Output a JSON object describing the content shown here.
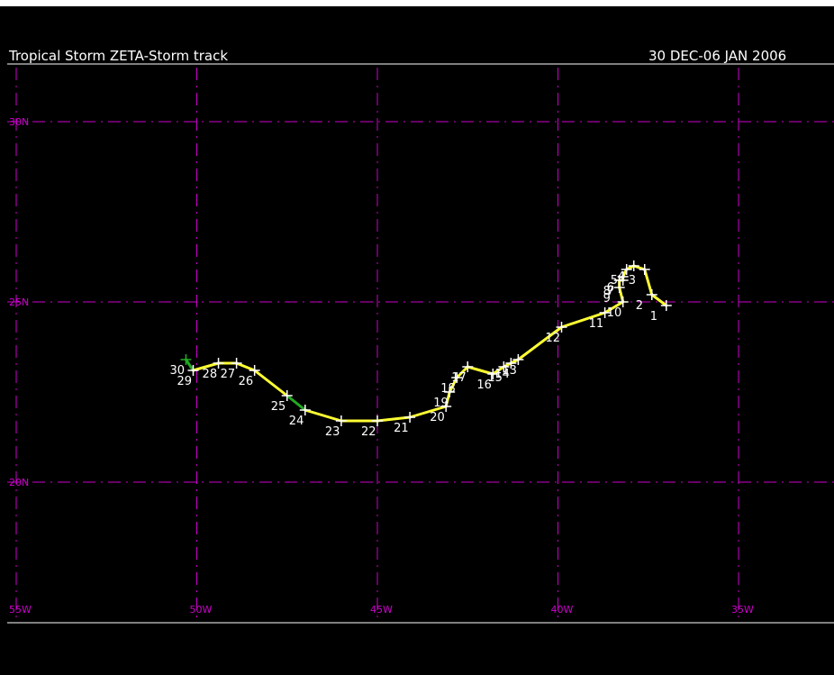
{
  "header": {
    "title": "Tropical Storm ZETA-Storm track",
    "date_range": "30 DEC-06 JAN 2006"
  },
  "colors": {
    "background": "#000000",
    "frame": "#ffffff",
    "grid": "#cc00cc",
    "track_storm": "#ffff33",
    "track_depression": "#22aa22",
    "markers": "#ffffff"
  },
  "map": {
    "lon_range": [
      -55,
      -35
    ],
    "lat_range": [
      17,
      32
    ],
    "lon_gridlines": [
      -55,
      -50,
      -45,
      -40,
      -35
    ],
    "lat_gridlines": [
      20,
      25,
      30
    ],
    "lon_labels": [
      "55W",
      "50W",
      "45W",
      "40W",
      "35W"
    ],
    "lat_labels": [
      "20N",
      "25N",
      "30N"
    ]
  },
  "chart_data": {
    "type": "line",
    "title": "Tropical Storm ZETA-Storm track",
    "subtitle": "30 DEC-06 JAN 2006",
    "xlabel": "",
    "ylabel": "",
    "series": [
      {
        "points": [
          {
            "label": "1",
            "lon": -37.0,
            "lat": 24.9,
            "stage": "storm"
          },
          {
            "label": "2",
            "lon": -37.4,
            "lat": 25.2,
            "stage": "storm"
          },
          {
            "label": "3",
            "lon": -37.6,
            "lat": 25.9,
            "stage": "storm"
          },
          {
            "label": "4",
            "lon": -37.9,
            "lat": 26.0,
            "stage": "storm"
          },
          {
            "label": "5",
            "lon": -38.1,
            "lat": 25.9,
            "stage": "storm"
          },
          {
            "label": "6",
            "lon": -38.2,
            "lat": 25.7,
            "stage": "storm"
          },
          {
            "label": "7",
            "lon": -38.2,
            "lat": 25.6,
            "stage": "storm"
          },
          {
            "label": "8",
            "lon": -38.3,
            "lat": 25.6,
            "stage": "storm"
          },
          {
            "label": "9",
            "lon": -38.3,
            "lat": 25.4,
            "stage": "storm"
          },
          {
            "label": "10",
            "lon": -38.2,
            "lat": 25.0,
            "stage": "storm"
          },
          {
            "label": "11",
            "lon": -38.7,
            "lat": 24.7,
            "stage": "storm"
          },
          {
            "label": "12",
            "lon": -39.9,
            "lat": 24.3,
            "stage": "storm"
          },
          {
            "label": "13",
            "lon": -41.1,
            "lat": 23.4,
            "stage": "storm"
          },
          {
            "label": "14",
            "lon": -41.3,
            "lat": 23.3,
            "stage": "storm"
          },
          {
            "label": "15",
            "lon": -41.5,
            "lat": 23.2,
            "stage": "storm"
          },
          {
            "label": "16",
            "lon": -41.8,
            "lat": 23.0,
            "stage": "storm"
          },
          {
            "label": "17",
            "lon": -42.5,
            "lat": 23.2,
            "stage": "storm"
          },
          {
            "label": "18",
            "lon": -42.8,
            "lat": 22.9,
            "stage": "storm"
          },
          {
            "label": "19",
            "lon": -43.0,
            "lat": 22.5,
            "stage": "storm"
          },
          {
            "label": "20",
            "lon": -43.1,
            "lat": 22.1,
            "stage": "storm"
          },
          {
            "label": "21",
            "lon": -44.1,
            "lat": 21.8,
            "stage": "storm"
          },
          {
            "label": "22",
            "lon": -45.0,
            "lat": 21.7,
            "stage": "storm"
          },
          {
            "label": "23",
            "lon": -46.0,
            "lat": 21.7,
            "stage": "storm"
          },
          {
            "label": "24",
            "lon": -47.0,
            "lat": 22.0,
            "stage": "storm"
          },
          {
            "label": "25",
            "lon": -47.5,
            "lat": 22.4,
            "stage": "depression"
          },
          {
            "label": "26",
            "lon": -48.4,
            "lat": 23.1,
            "stage": "storm"
          },
          {
            "label": "27",
            "lon": -48.9,
            "lat": 23.3,
            "stage": "storm"
          },
          {
            "label": "28",
            "lon": -49.4,
            "lat": 23.3,
            "stage": "storm"
          },
          {
            "label": "29",
            "lon": -50.1,
            "lat": 23.1,
            "stage": "storm"
          },
          {
            "label": "30",
            "lon": -50.3,
            "lat": 23.4,
            "stage": "depression"
          }
        ]
      }
    ]
  }
}
